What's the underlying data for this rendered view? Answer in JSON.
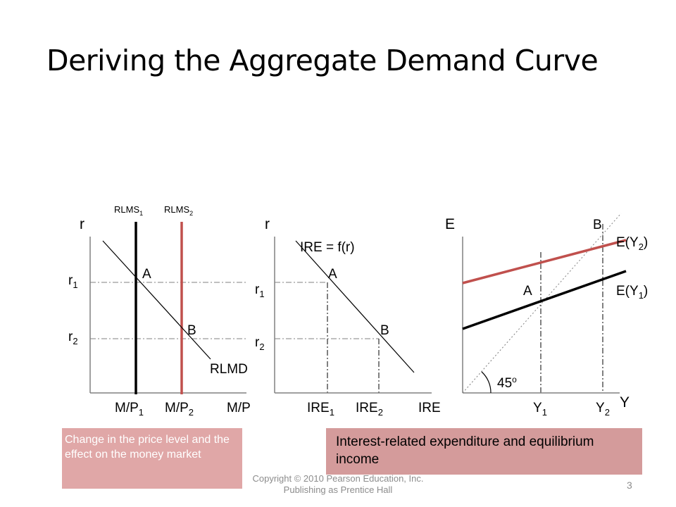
{
  "slide": {
    "title": "Deriving the Aggregate Demand Curve",
    "page_number": "3",
    "copyright": "Copyright © 2010 Pearson Education, Inc. Publishing as Prentice Hall"
  },
  "colors": {
    "shifted": "#c0504d",
    "guide": "#808080",
    "axis": "#000000"
  },
  "money_market": {
    "y_axis": "r",
    "x_axis": "M/P",
    "supply_1": {
      "name": "RLMS",
      "sub": "1"
    },
    "supply_2": {
      "name": "RLMS",
      "sub": "2"
    },
    "demand": "RLMD",
    "point_a": "A",
    "point_b": "B",
    "r1": {
      "name": "r",
      "sub": "1"
    },
    "r2": {
      "name": "r",
      "sub": "2"
    },
    "mp1": {
      "name": "M/P",
      "sub": "1"
    },
    "mp2": {
      "name": "M/P",
      "sub": "2"
    }
  },
  "expenditure": {
    "y_axis": "r",
    "x_axis": "IRE",
    "curve": "IRE = f(r)",
    "point_a": "A",
    "point_b": "B",
    "r1": {
      "name": "r",
      "sub": "1"
    },
    "r2": {
      "name": "r",
      "sub": "2"
    },
    "ire1": {
      "name": "IRE",
      "sub": "1"
    },
    "ire2": {
      "name": "IRE",
      "sub": "2"
    }
  },
  "income": {
    "y_axis": "E",
    "x_axis": "Y",
    "angle": {
      "value": "45",
      "sup": "o"
    },
    "point_a": "A",
    "point_b": "B",
    "e1": {
      "pre": "E(Y",
      "sub": "1",
      "post": ")"
    },
    "e2": {
      "pre": "E(Y",
      "sub": "2",
      "post": ")"
    },
    "y1": {
      "name": "Y",
      "sub": "1"
    },
    "y2": {
      "name": "Y",
      "sub": "2"
    }
  },
  "notes": {
    "money": "Change in the price level and the effect on the money market",
    "income": "Interest-related expenditure and equilibrium income"
  }
}
